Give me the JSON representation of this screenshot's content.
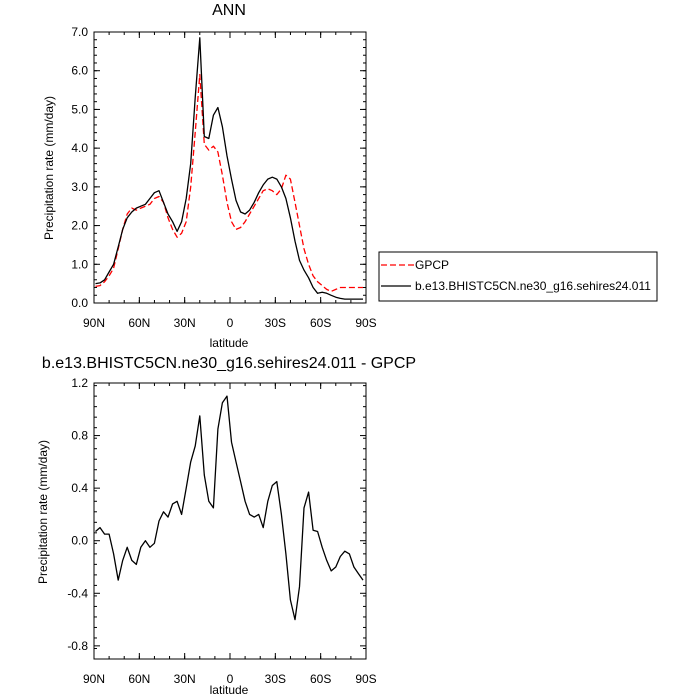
{
  "chart_data": [
    {
      "type": "line",
      "title": "ANN",
      "xlabel": "latitude",
      "ylabel": "Precipitation rate (mm/day)",
      "x_ticks": [
        "90N",
        "60N",
        "30N",
        "0",
        "30S",
        "60S",
        "90S"
      ],
      "x_tick_values": [
        90,
        60,
        30,
        0,
        -30,
        -60,
        -90
      ],
      "xlim": [
        90,
        -90
      ],
      "y_ticks": [
        "0.0",
        "1.0",
        "2.0",
        "3.0",
        "4.0",
        "5.0",
        "6.0",
        "7.0"
      ],
      "ylim": [
        0,
        7
      ],
      "legend_position": "outside-right",
      "series": [
        {
          "name": "GPCP",
          "color": "#ff0000",
          "dash": true,
          "x": [
            89,
            86,
            83,
            80,
            77,
            74,
            71,
            68,
            65,
            62,
            59,
            56,
            53,
            50,
            47,
            44,
            41,
            38,
            35,
            32,
            29,
            26,
            23,
            20,
            17,
            14,
            11,
            8,
            5,
            2,
            -1,
            -4,
            -7,
            -10,
            -13,
            -16,
            -19,
            -22,
            -25,
            -28,
            -31,
            -34,
            -37,
            -40,
            -43,
            -46,
            -49,
            -52,
            -55,
            -58,
            -61,
            -64,
            -67,
            -70,
            -73,
            -76,
            -79,
            -82,
            -85,
            -88
          ],
          "y": [
            0.43,
            0.45,
            0.55,
            0.7,
            0.9,
            1.4,
            1.9,
            2.3,
            2.45,
            2.4,
            2.45,
            2.5,
            2.55,
            2.7,
            2.75,
            2.6,
            2.2,
            1.9,
            1.7,
            1.8,
            2.1,
            3.0,
            4.4,
            5.9,
            4.1,
            3.95,
            4.05,
            3.9,
            3.3,
            2.6,
            2.1,
            1.9,
            1.95,
            2.1,
            2.3,
            2.5,
            2.7,
            2.9,
            2.95,
            2.9,
            2.8,
            2.95,
            3.3,
            3.2,
            2.6,
            2.0,
            1.4,
            1.0,
            0.7,
            0.55,
            0.45,
            0.35,
            0.3,
            0.35,
            0.4,
            0.4,
            0.4,
            0.4,
            0.4,
            0.4
          ]
        },
        {
          "name": "b.e13.BHISTC5CN.ne30_g16.sehires24.011",
          "color": "#000000",
          "dash": false,
          "x": [
            89,
            86,
            83,
            80,
            77,
            74,
            71,
            68,
            65,
            62,
            59,
            56,
            53,
            50,
            47,
            44,
            41,
            38,
            35,
            32,
            29,
            26,
            23,
            20,
            17,
            14,
            11,
            8,
            5,
            2,
            -1,
            -4,
            -7,
            -10,
            -13,
            -16,
            -19,
            -22,
            -25,
            -28,
            -31,
            -34,
            -37,
            -40,
            -43,
            -46,
            -49,
            -52,
            -55,
            -58,
            -61,
            -64,
            -67,
            -70,
            -73,
            -76,
            -79,
            -82,
            -85,
            -88
          ],
          "y": [
            0.5,
            0.52,
            0.6,
            0.8,
            1.0,
            1.45,
            1.9,
            2.2,
            2.35,
            2.45,
            2.5,
            2.55,
            2.7,
            2.85,
            2.9,
            2.6,
            2.3,
            2.1,
            1.85,
            2.1,
            2.7,
            3.6,
            5.3,
            6.85,
            4.3,
            4.25,
            4.85,
            5.05,
            4.55,
            3.8,
            3.2,
            2.65,
            2.35,
            2.3,
            2.4,
            2.6,
            2.85,
            3.05,
            3.2,
            3.25,
            3.2,
            3.0,
            2.7,
            2.2,
            1.6,
            1.1,
            0.85,
            0.65,
            0.4,
            0.25,
            0.28,
            0.25,
            0.2,
            0.15,
            0.12,
            0.1,
            0.1,
            0.1,
            0.1,
            0.1
          ]
        }
      ]
    },
    {
      "type": "line",
      "title": "b.e13.BHISTC5CN.ne30_g16.sehires24.011 - GPCP",
      "xlabel": "latitude",
      "ylabel": "Precipitation rate (mm/day)",
      "x_ticks": [
        "90N",
        "60N",
        "30N",
        "0",
        "30S",
        "60S",
        "90S"
      ],
      "x_tick_values": [
        90,
        60,
        30,
        0,
        -30,
        -60,
        -90
      ],
      "xlim": [
        90,
        -90
      ],
      "y_ticks": [
        "-0.8",
        "-0.4",
        "0.0",
        "0.4",
        "0.8",
        "1.2"
      ],
      "ylim": [
        -0.9,
        1.2
      ],
      "series": [
        {
          "color": "#000000",
          "x": [
            89,
            86,
            83,
            80,
            77,
            74,
            71,
            68,
            65,
            62,
            59,
            56,
            53,
            50,
            47,
            44,
            41,
            38,
            35,
            32,
            29,
            26,
            23,
            20,
            17,
            14,
            11,
            8,
            5,
            2,
            -1,
            -4,
            -7,
            -10,
            -13,
            -16,
            -19,
            -22,
            -25,
            -28,
            -31,
            -34,
            -37,
            -40,
            -43,
            -46,
            -49,
            -52,
            -55,
            -58,
            -61,
            -64,
            -67,
            -70,
            -73,
            -76,
            -79,
            -82,
            -85,
            -88
          ],
          "y": [
            0.07,
            0.1,
            0.05,
            0.05,
            -0.1,
            -0.3,
            -0.15,
            -0.05,
            -0.15,
            -0.18,
            -0.05,
            0.0,
            -0.05,
            -0.02,
            0.15,
            0.22,
            0.18,
            0.28,
            0.3,
            0.2,
            0.4,
            0.6,
            0.72,
            0.95,
            0.5,
            0.3,
            0.25,
            0.85,
            1.05,
            1.1,
            0.75,
            0.6,
            0.45,
            0.3,
            0.2,
            0.18,
            0.2,
            0.1,
            0.3,
            0.42,
            0.45,
            0.2,
            -0.1,
            -0.45,
            -0.6,
            -0.35,
            0.25,
            0.37,
            0.08,
            0.07,
            -0.05,
            -0.15,
            -0.23,
            -0.2,
            -0.12,
            -0.08,
            -0.1,
            -0.2,
            -0.25,
            -0.3
          ]
        }
      ]
    }
  ]
}
